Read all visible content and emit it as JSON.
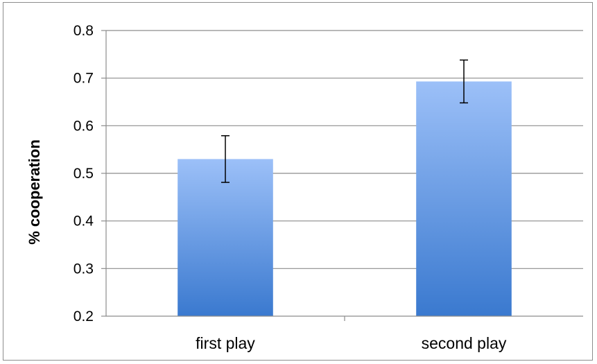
{
  "chart_data": {
    "type": "bar",
    "title": "",
    "xlabel": "",
    "ylabel": "% cooperation",
    "categories": [
      "first play",
      "second play"
    ],
    "values": [
      0.53,
      0.693
    ],
    "error_bars": [
      {
        "low": 0.481,
        "high": 0.579
      },
      {
        "low": 0.648,
        "high": 0.738
      }
    ],
    "ylim": [
      0.2,
      0.8
    ],
    "yticks": [
      0.2,
      0.3,
      0.4,
      0.5,
      0.6,
      0.7,
      0.8
    ],
    "ytick_labels": [
      "0.2",
      "0.3",
      "0.4",
      "0.5",
      "0.6",
      "0.7",
      "0.8"
    ],
    "grid": true,
    "legend": "none",
    "colors": {
      "bar_top": "#9cc0f8",
      "bar_bottom": "#3a79cf",
      "grid": "#8c8c8c",
      "error_bar": "#000000"
    }
  }
}
